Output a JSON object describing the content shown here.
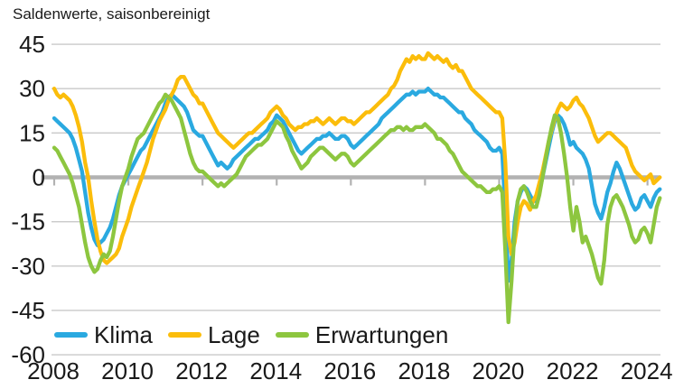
{
  "title": "Saldenwerte, saisonbereinigt",
  "axis": {
    "grid_color": "#c9c9c9",
    "zero_line_color": "#b2b2b2",
    "text_color": "#1a1a1a"
  },
  "chart_data": {
    "type": "line",
    "title": "Saldenwerte, saisonbereinigt",
    "frequency": "monthly",
    "x_start": "2008-01",
    "x_end": "2024-05",
    "x_tick_labels": [
      "2008",
      "2010",
      "2012",
      "2014",
      "2016",
      "2018",
      "2020",
      "2022",
      "2024"
    ],
    "y_ticks": [
      45,
      30,
      15,
      0,
      -15,
      -30,
      -45,
      -60
    ],
    "ylim": [
      -60,
      45
    ],
    "grid": "horizontal",
    "legend_position": "bottom-left-inside",
    "series": [
      {
        "name": "Klima",
        "color": "#2aa9e0",
        "values": [
          20,
          19,
          18,
          17,
          16,
          15,
          13,
          10,
          6,
          2,
          -5,
          -12,
          -17,
          -21,
          -23,
          -22,
          -21,
          -19,
          -17,
          -14,
          -10,
          -6,
          -3,
          -1,
          1,
          3,
          5,
          7,
          9,
          10,
          12,
          14,
          16,
          18,
          20,
          22,
          25,
          27,
          28,
          27,
          26,
          25,
          24,
          22,
          19,
          16,
          15,
          14,
          14,
          12,
          10,
          8,
          6,
          4,
          5,
          4,
          3,
          4,
          6,
          7,
          8,
          9,
          10,
          11,
          12,
          13,
          13,
          14,
          15,
          16,
          18,
          19,
          21,
          20,
          19,
          17,
          15,
          13,
          11,
          9,
          8,
          9,
          10,
          11,
          12,
          13,
          13,
          14,
          14,
          15,
          14,
          13,
          13,
          14,
          14,
          13,
          11,
          10,
          11,
          12,
          13,
          14,
          15,
          16,
          17,
          18,
          20,
          21,
          22,
          23,
          24,
          25,
          26,
          27,
          28,
          28,
          29,
          28,
          29,
          29,
          29,
          30,
          29,
          28,
          28,
          27,
          27,
          26,
          25,
          24,
          23,
          22,
          22,
          20,
          19,
          18,
          16,
          15,
          14,
          13,
          12,
          10,
          9,
          9,
          10,
          8,
          -12,
          -35,
          -28,
          -15,
          -8,
          -5,
          -3,
          -4,
          -6,
          -8,
          -8,
          -5,
          0,
          5,
          10,
          15,
          19,
          21,
          20,
          18,
          15,
          11,
          12,
          10,
          9,
          8,
          6,
          3,
          -3,
          -9,
          -12,
          -14,
          -10,
          -5,
          -2,
          2,
          5,
          3,
          0,
          -3,
          -6,
          -9,
          -11,
          -10,
          -7,
          -6,
          -8,
          -10,
          -7,
          -5,
          -4
        ]
      },
      {
        "name": "Lage",
        "color": "#fbbd0b",
        "values": [
          30,
          28,
          27,
          28,
          27,
          26,
          24,
          21,
          17,
          12,
          5,
          0,
          -8,
          -15,
          -21,
          -25,
          -28,
          -29,
          -28,
          -27,
          -26,
          -24,
          -20,
          -17,
          -14,
          -10,
          -7,
          -4,
          -1,
          2,
          5,
          9,
          13,
          16,
          19,
          21,
          23,
          26,
          28,
          30,
          33,
          34,
          34,
          32,
          30,
          28,
          27,
          25,
          25,
          23,
          21,
          19,
          17,
          15,
          14,
          13,
          12,
          11,
          10,
          11,
          12,
          13,
          14,
          15,
          15,
          16,
          17,
          18,
          19,
          20,
          22,
          23,
          24,
          23,
          21,
          20,
          18,
          17,
          16,
          17,
          17,
          18,
          18,
          19,
          19,
          20,
          19,
          18,
          19,
          20,
          19,
          18,
          19,
          20,
          20,
          19,
          19,
          18,
          19,
          20,
          21,
          22,
          22,
          23,
          24,
          25,
          26,
          27,
          28,
          30,
          31,
          33,
          36,
          38,
          40,
          39,
          41,
          40,
          41,
          40,
          40,
          42,
          41,
          40,
          41,
          40,
          39,
          40,
          38,
          37,
          38,
          36,
          36,
          34,
          32,
          30,
          29,
          28,
          27,
          26,
          25,
          24,
          23,
          22,
          22,
          20,
          5,
          -20,
          -26,
          -22,
          -15,
          -10,
          -8,
          -9,
          -11,
          -8,
          -6,
          -2,
          2,
          7,
          12,
          16,
          20,
          23,
          25,
          24,
          23,
          24,
          26,
          27,
          25,
          24,
          22,
          20,
          17,
          14,
          12,
          13,
          14,
          15,
          15,
          14,
          13,
          12,
          11,
          10,
          7,
          4,
          2,
          1,
          0,
          -1,
          0,
          1,
          -2,
          -1,
          0
        ]
      },
      {
        "name": "Erwartungen",
        "color": "#8dc63f",
        "values": [
          10,
          9,
          7,
          5,
          3,
          1,
          -2,
          -6,
          -10,
          -16,
          -22,
          -27,
          -30,
          -32,
          -31,
          -28,
          -26,
          -27,
          -25,
          -20,
          -14,
          -8,
          -3,
          0,
          3,
          7,
          10,
          13,
          14,
          15,
          17,
          19,
          21,
          23,
          25,
          26,
          28,
          27,
          26,
          24,
          22,
          20,
          16,
          12,
          8,
          5,
          3,
          2,
          2,
          1,
          0,
          -1,
          -2,
          -3,
          -2,
          -3,
          -2,
          -1,
          0,
          1,
          3,
          5,
          7,
          8,
          9,
          10,
          11,
          11,
          12,
          13,
          15,
          17,
          19,
          18,
          17,
          14,
          12,
          9,
          7,
          5,
          3,
          4,
          5,
          7,
          8,
          9,
          10,
          10,
          9,
          8,
          7,
          6,
          7,
          8,
          8,
          7,
          5,
          4,
          5,
          6,
          7,
          8,
          9,
          10,
          11,
          12,
          13,
          14,
          15,
          16,
          16,
          17,
          17,
          16,
          17,
          16,
          16,
          17,
          17,
          17,
          18,
          17,
          16,
          15,
          13,
          13,
          12,
          11,
          9,
          8,
          6,
          4,
          2,
          1,
          0,
          -1,
          -2,
          -3,
          -3,
          -4,
          -5,
          -5,
          -4,
          -4,
          -3,
          -5,
          -25,
          -49,
          -35,
          -18,
          -8,
          -4,
          -3,
          -5,
          -8,
          -10,
          -10,
          -6,
          0,
          6,
          12,
          17,
          21,
          20,
          15,
          8,
          0,
          -10,
          -18,
          -10,
          -15,
          -22,
          -20,
          -23,
          -26,
          -30,
          -34,
          -36,
          -28,
          -16,
          -10,
          -7,
          -6,
          -8,
          -10,
          -13,
          -16,
          -20,
          -22,
          -21,
          -18,
          -17,
          -19,
          -22,
          -16,
          -10,
          -7
        ]
      }
    ]
  }
}
